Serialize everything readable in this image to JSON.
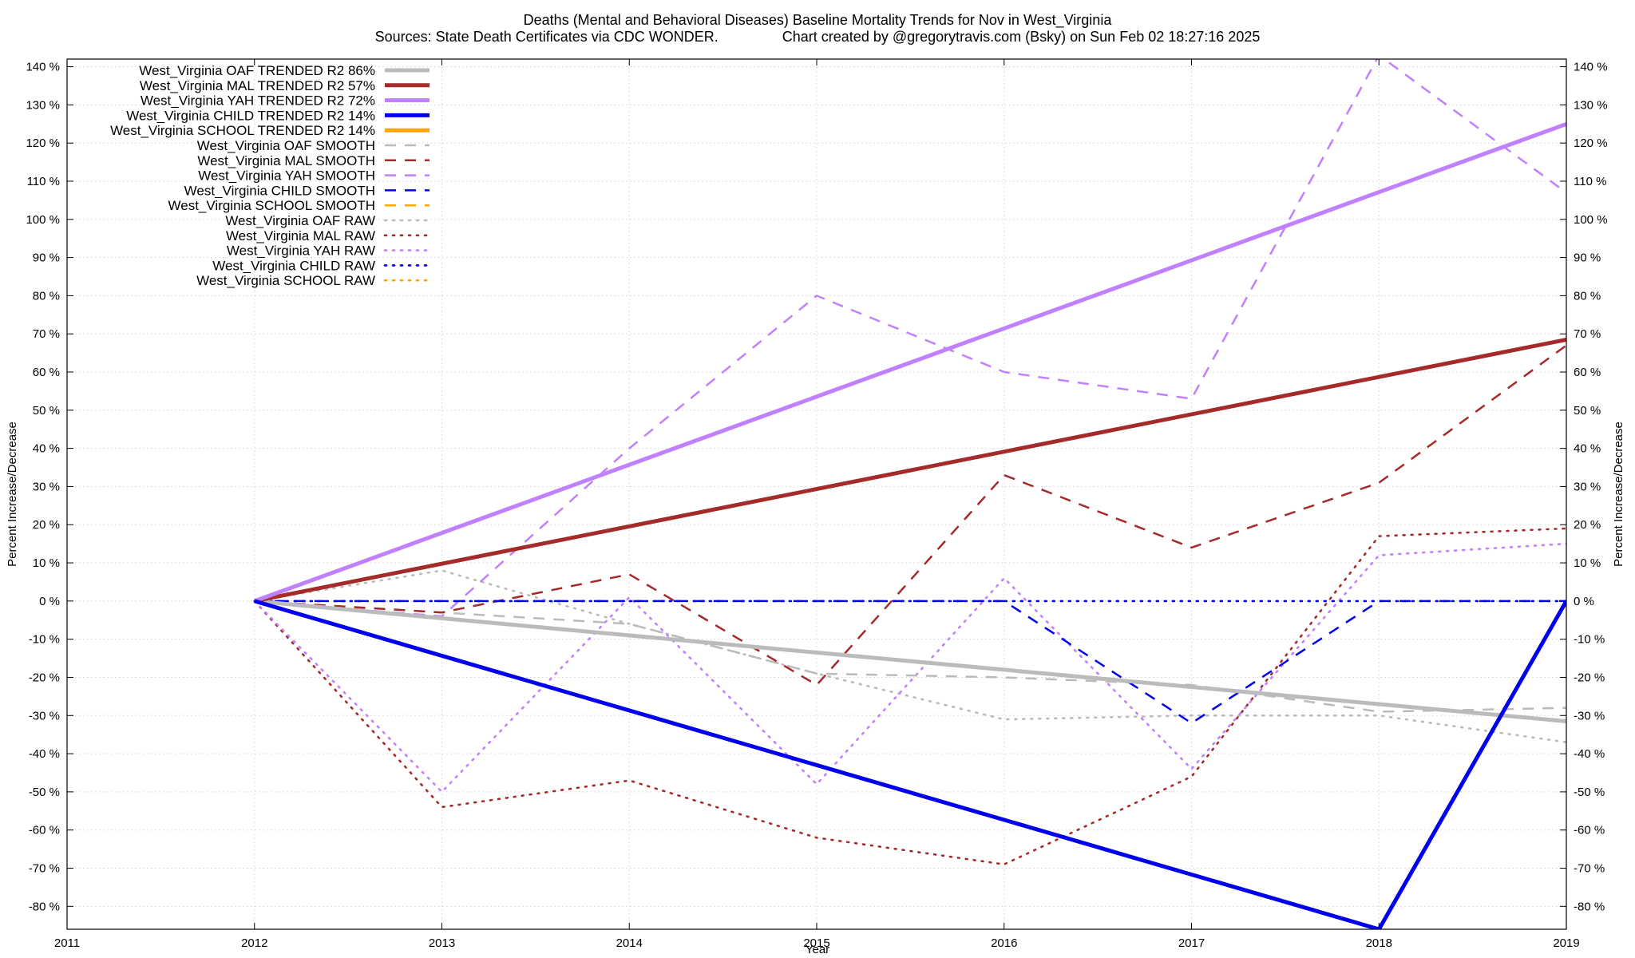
{
  "chart_data": {
    "type": "line",
    "title": "Deaths (Mental and Behavioral Diseases)  Baseline Mortality Trends for Nov in West_Virginia",
    "subtitle": "Sources: State Death Certificates via CDC WONDER.                Chart created by @gregorytravis.com (Bsky) on Sun Feb 02 18:27:16 2025",
    "xlabel": "Year",
    "ylabel": "Percent Increase/Decrease",
    "y2label": "Percent Increase/Decrease",
    "xlim": [
      2011,
      2019
    ],
    "ylim": [
      -86,
      142
    ],
    "x_ticks": [
      "2011",
      "2012",
      "2013",
      "2014",
      "2015",
      "2016",
      "2017",
      "2018",
      "2019"
    ],
    "y_ticks": [
      "-80 %",
      "-70 %",
      "-60 %",
      "-50 %",
      "-40 %",
      "-30 %",
      "-20 %",
      "-10 %",
      "0 %",
      "10 %",
      "20 %",
      "30 %",
      "40 %",
      "50 %",
      "60 %",
      "70 %",
      "80 %",
      "90 %",
      "100 %",
      "110 %",
      "120 %",
      "130 %",
      "140 %"
    ],
    "grid": true,
    "legend_position": "top-left",
    "series": [
      {
        "name": "West_Virginia OAF TRENDED R2  86%",
        "color": "#bbbbbb",
        "style": "solid",
        "x": [
          2012,
          2019
        ],
        "y": [
          0,
          -31.5
        ]
      },
      {
        "name": "West_Virginia MAL TRENDED R2  57%",
        "color": "#a52a2a",
        "style": "solid",
        "x": [
          2012,
          2019
        ],
        "y": [
          0,
          68.5
        ]
      },
      {
        "name": "West_Virginia YAH TRENDED R2  72%",
        "color": "#c080ff",
        "style": "solid",
        "x": [
          2012,
          2019
        ],
        "y": [
          0,
          125
        ]
      },
      {
        "name": "West_Virginia CHILD TRENDED R2  14%",
        "color": "#0000ee",
        "style": "solid",
        "x": [
          2012,
          2018,
          2019
        ],
        "y": [
          0,
          -86,
          0
        ]
      },
      {
        "name": "West_Virginia SCHOOL TRENDED R2  14%",
        "color": "#ffa500",
        "style": "solid",
        "x": [],
        "y": []
      },
      {
        "name": "West_Virginia OAF SMOOTH",
        "color": "#bbbbbb",
        "style": "dashed",
        "x": [
          2012,
          2013,
          2014,
          2015,
          2016,
          2017,
          2018,
          2019
        ],
        "y": [
          0,
          -3,
          -6,
          -19,
          -20,
          -22,
          -29,
          -28
        ]
      },
      {
        "name": "West_Virginia MAL SMOOTH",
        "color": "#a52a2a",
        "style": "dashed",
        "x": [
          2012,
          2013,
          2014,
          2015,
          2016,
          2017,
          2018,
          2019
        ],
        "y": [
          0,
          -3,
          7,
          -22,
          33,
          14,
          31,
          67
        ]
      },
      {
        "name": "West_Virginia YAH SMOOTH",
        "color": "#c080ff",
        "style": "dashed",
        "x": [
          2012,
          2013,
          2014,
          2015,
          2016,
          2017,
          2018,
          2019
        ],
        "y": [
          0,
          -4,
          40,
          80,
          60,
          53,
          143,
          107
        ]
      },
      {
        "name": "West_Virginia CHILD SMOOTH",
        "color": "#0000ee",
        "style": "dashed",
        "x": [
          2012,
          2013,
          2014,
          2015,
          2016,
          2017,
          2018,
          2019
        ],
        "y": [
          0,
          0,
          0,
          0,
          0,
          -32,
          0,
          0
        ]
      },
      {
        "name": "West_Virginia SCHOOL SMOOTH",
        "color": "#ffa500",
        "style": "dashed",
        "x": [],
        "y": []
      },
      {
        "name": "West_Virginia OAF RAW",
        "color": "#bbbbbb",
        "style": "dotted",
        "x": [
          2012,
          2013,
          2014,
          2015,
          2016,
          2017,
          2018,
          2019
        ],
        "y": [
          0,
          8,
          -6,
          -19,
          -31,
          -30,
          -30,
          -37
        ]
      },
      {
        "name": "West_Virginia MAL RAW",
        "color": "#a52a2a",
        "style": "dotted",
        "x": [
          2012,
          2013,
          2014,
          2015,
          2016,
          2017,
          2018,
          2019
        ],
        "y": [
          0,
          -54,
          -47,
          -62,
          -69,
          -46,
          17,
          19
        ]
      },
      {
        "name": "West_Virginia YAH RAW",
        "color": "#c080ff",
        "style": "dotted",
        "x": [
          2012,
          2013,
          2014,
          2015,
          2016,
          2017,
          2018,
          2019
        ],
        "y": [
          0,
          -50,
          1,
          -48,
          6,
          -44,
          12,
          15
        ]
      },
      {
        "name": "West_Virginia CHILD RAW",
        "color": "#0000ee",
        "style": "dotted",
        "x": [
          2012,
          2013,
          2014,
          2015,
          2016,
          2017,
          2018,
          2019
        ],
        "y": [
          0,
          0,
          0,
          0,
          0,
          0,
          0,
          0
        ]
      },
      {
        "name": "West_Virginia SCHOOL RAW",
        "color": "#ffa500",
        "style": "dotted",
        "x": [],
        "y": []
      }
    ]
  }
}
